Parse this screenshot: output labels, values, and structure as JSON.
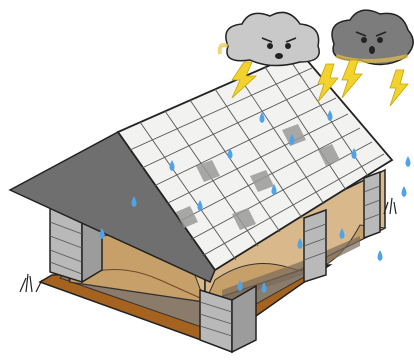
{
  "scene": {
    "subject": "house-under-storm",
    "colors": {
      "sky_bg": "#ffffff",
      "cloud_light": "#c9c9c9",
      "cloud_dark": "#7c7c7c",
      "cloud_glow": "#e8c24a",
      "lightning": "#f2d22c",
      "roof_tile": "#f2f2f0",
      "roof_tile_shadow": "#9a9a9a",
      "roof_edge": "#6f6f6f",
      "gable_plaster": "#d9b98b",
      "gable_plaster_dark": "#c79f68",
      "wall_brick": "#b9b9b9",
      "wall_brick_line": "#555555",
      "floor_gravel": "#8a7b6a",
      "floor_slab": "#a5631f",
      "rain": "#4fa3e8",
      "outline": "#222222"
    },
    "icons": [
      "angry-cloud-icon",
      "lightning-bolt-icon",
      "raindrop-icon",
      "grass-tuft-icon"
    ]
  }
}
